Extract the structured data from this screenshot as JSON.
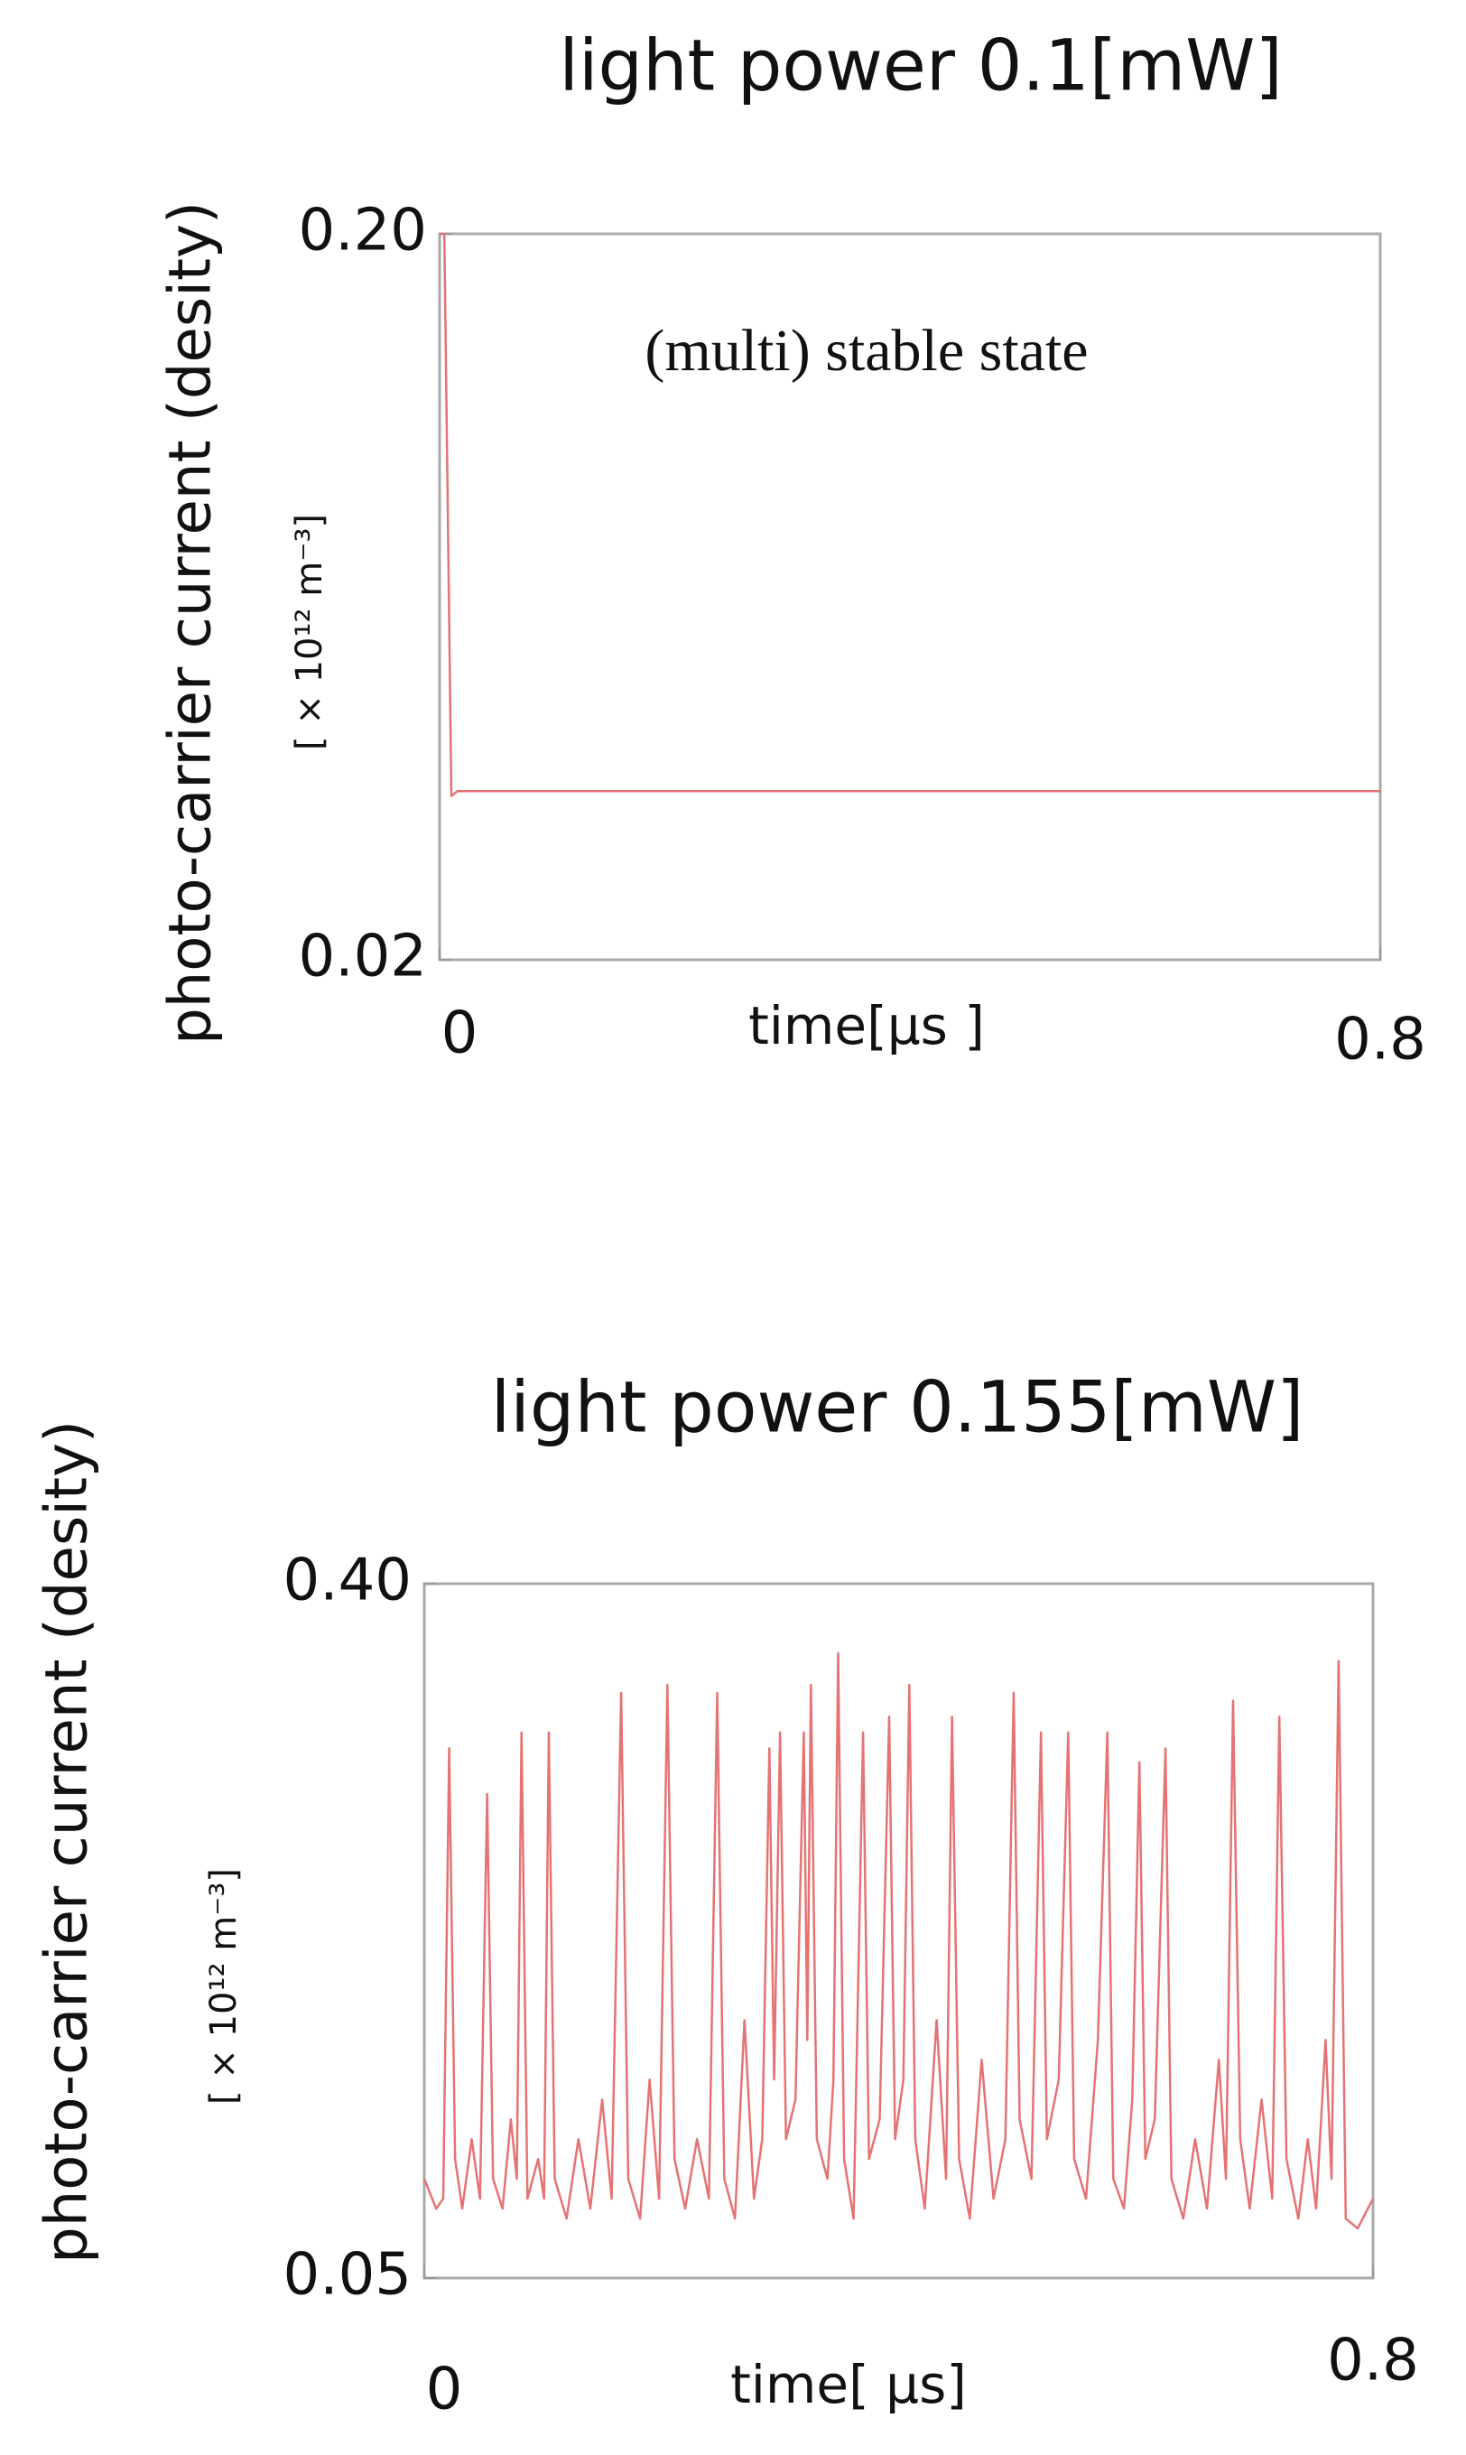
{
  "chart_data": [
    {
      "type": "line",
      "title": "light power 0.1[mW]",
      "y_label": "photo-carrier current (desity)",
      "unit_label": "[ × 10¹² m⁻³]",
      "x_label": "time[μs ]",
      "annotation": "(multi)  stable state",
      "xlim": [
        0,
        0.8
      ],
      "xticks": [
        0,
        0.8
      ],
      "ylim": [
        0.02,
        0.2
      ],
      "yticks": [
        {
          "value": 0.2,
          "label": "0.20"
        },
        0.02
      ],
      "grid": false,
      "x": [
        0,
        0.004,
        0.01,
        0.015,
        0.8
      ],
      "series": [
        {
          "color": "#e57373",
          "values": [
            0.2,
            0.2,
            0.0606,
            0.0618,
            0.0618
          ]
        }
      ]
    },
    {
      "type": "line",
      "title": "light power 0.155[mW]",
      "y_label": "photo-carrier current (desity)",
      "unit_label": "[ × 10¹² m⁻³]",
      "x_label": "time[ μs]",
      "xlim": [
        0,
        0.8
      ],
      "xticks": [
        0,
        0.8
      ],
      "ylim": [
        0.05,
        0.4
      ],
      "yticks": [
        {
          "value": 0.4,
          "label": "0.40"
        },
        0.05
      ],
      "grid": false,
      "x": [
        0,
        0.01,
        0.016,
        0.021,
        0.026,
        0.032,
        0.04,
        0.047,
        0.053,
        0.058,
        0.066,
        0.073,
        0.078,
        0.082,
        0.087,
        0.096,
        0.101,
        0.105,
        0.11,
        0.12,
        0.13,
        0.14,
        0.15,
        0.158,
        0.166,
        0.172,
        0.182,
        0.19,
        0.198,
        0.205,
        0.211,
        0.22,
        0.23,
        0.24,
        0.247,
        0.253,
        0.262,
        0.27,
        0.278,
        0.285,
        0.291,
        0.295,
        0.3,
        0.305,
        0.313,
        0.32,
        0.323,
        0.326,
        0.331,
        0.34,
        0.345,
        0.349,
        0.354,
        0.362,
        0.37,
        0.375,
        0.384,
        0.392,
        0.397,
        0.404,
        0.409,
        0.414,
        0.422,
        0.432,
        0.44,
        0.445,
        0.451,
        0.46,
        0.47,
        0.48,
        0.49,
        0.497,
        0.502,
        0.512,
        0.52,
        0.525,
        0.535,
        0.543,
        0.548,
        0.558,
        0.568,
        0.576,
        0.581,
        0.59,
        0.597,
        0.603,
        0.608,
        0.616,
        0.625,
        0.63,
        0.64,
        0.65,
        0.66,
        0.67,
        0.676,
        0.682,
        0.688,
        0.696,
        0.706,
        0.715,
        0.721,
        0.727,
        0.737,
        0.745,
        0.752,
        0.76,
        0.765,
        0.771,
        0.777,
        0.787,
        0.8
      ],
      "series": [
        {
          "color": "#e57373",
          "values": [
            0.1,
            0.085,
            0.09,
            0.317,
            0.11,
            0.085,
            0.12,
            0.09,
            0.294,
            0.1,
            0.085,
            0.13,
            0.1,
            0.325,
            0.09,
            0.11,
            0.09,
            0.325,
            0.1,
            0.08,
            0.12,
            0.085,
            0.14,
            0.09,
            0.345,
            0.1,
            0.08,
            0.15,
            0.09,
            0.349,
            0.11,
            0.085,
            0.12,
            0.09,
            0.345,
            0.1,
            0.08,
            0.18,
            0.09,
            0.12,
            0.317,
            0.15,
            0.325,
            0.12,
            0.14,
            0.325,
            0.17,
            0.349,
            0.12,
            0.1,
            0.15,
            0.365,
            0.11,
            0.08,
            0.325,
            0.11,
            0.13,
            0.333,
            0.12,
            0.15,
            0.349,
            0.12,
            0.085,
            0.18,
            0.1,
            0.333,
            0.11,
            0.08,
            0.16,
            0.09,
            0.12,
            0.345,
            0.13,
            0.1,
            0.325,
            0.12,
            0.15,
            0.325,
            0.11,
            0.09,
            0.17,
            0.325,
            0.1,
            0.085,
            0.14,
            0.31,
            0.11,
            0.13,
            0.317,
            0.1,
            0.08,
            0.12,
            0.085,
            0.16,
            0.1,
            0.341,
            0.12,
            0.085,
            0.14,
            0.09,
            0.333,
            0.11,
            0.08,
            0.12,
            0.085,
            0.17,
            0.1,
            0.361,
            0.08,
            0.075,
            0.09
          ]
        }
      ]
    }
  ]
}
